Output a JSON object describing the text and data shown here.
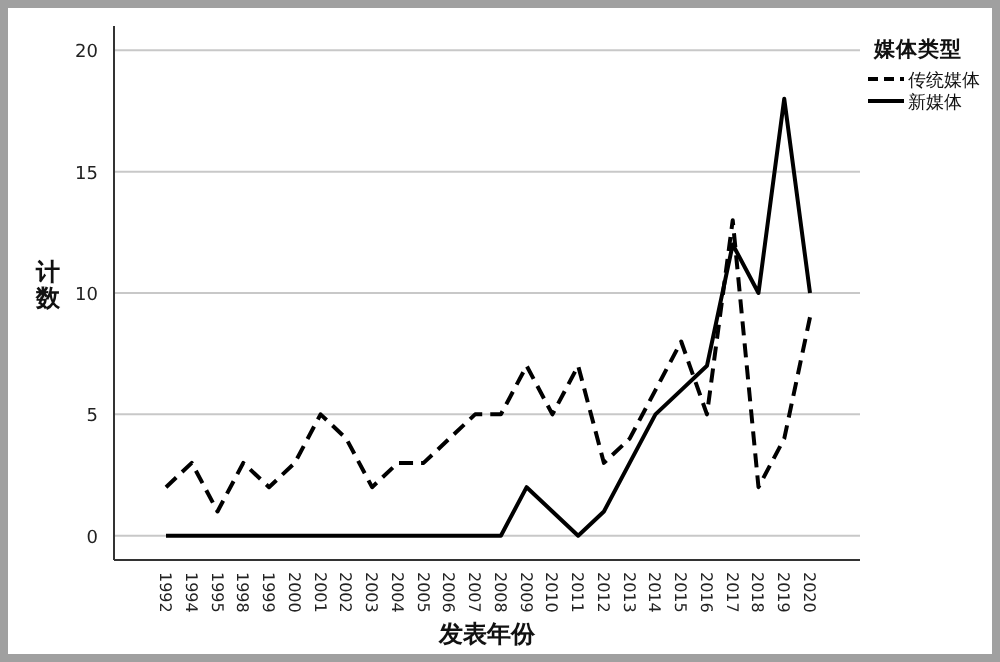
{
  "chart_data": {
    "type": "line",
    "xlabel": "发表年份",
    "ylabel": "计数",
    "legend_title": "媒体类型",
    "categories": [
      "1992",
      "1994",
      "1995",
      "1998",
      "1999",
      "2000",
      "2001",
      "2002",
      "2003",
      "2004",
      "2005",
      "2006",
      "2007",
      "2008",
      "2009",
      "2010",
      "2011",
      "2012",
      "2013",
      "2014",
      "2015",
      "2016",
      "2017",
      "2018",
      "2019",
      "2020"
    ],
    "series": [
      {
        "name": "传统媒体",
        "color": "#000000",
        "line_style": "dashed",
        "values": [
          2,
          3,
          1,
          3,
          2,
          3,
          5,
          4,
          2,
          3,
          3,
          4,
          5,
          5,
          7,
          5,
          7,
          3,
          4,
          6,
          8,
          5,
          13,
          2,
          4,
          9
        ]
      },
      {
        "name": "新媒体",
        "color": "#000000",
        "line_style": "solid",
        "values": [
          0,
          0,
          0,
          0,
          0,
          0,
          0,
          0,
          0,
          0,
          0,
          0,
          0,
          0,
          2,
          1,
          0,
          1,
          3,
          5,
          6,
          7,
          12,
          10,
          18,
          10
        ]
      }
    ],
    "ylim": [
      -1,
      21
    ],
    "yticks": [
      0,
      5,
      10,
      15,
      20
    ],
    "grid": "y",
    "legend": "top right"
  }
}
